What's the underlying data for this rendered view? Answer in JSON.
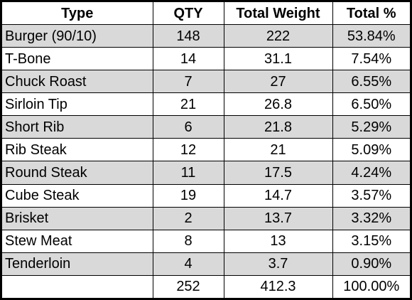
{
  "table": {
    "headers": [
      "Type",
      "QTY",
      "Total Weight",
      "Total %"
    ],
    "rows": [
      {
        "type": "Burger (90/10)",
        "qty": "148",
        "weight": "222",
        "pct": "53.84%"
      },
      {
        "type": "T-Bone",
        "qty": "14",
        "weight": "31.1",
        "pct": "7.54%"
      },
      {
        "type": "Chuck Roast",
        "qty": "7",
        "weight": "27",
        "pct": "6.55%"
      },
      {
        "type": "Sirloin Tip",
        "qty": "21",
        "weight": "26.8",
        "pct": "6.50%"
      },
      {
        "type": "Short Rib",
        "qty": "6",
        "weight": "21.8",
        "pct": "5.29%"
      },
      {
        "type": "Rib Steak",
        "qty": "12",
        "weight": "21",
        "pct": "5.09%"
      },
      {
        "type": "Round Steak",
        "qty": "11",
        "weight": "17.5",
        "pct": "4.24%"
      },
      {
        "type": "Cube Steak",
        "qty": "19",
        "weight": "14.7",
        "pct": "3.57%"
      },
      {
        "type": "Brisket",
        "qty": "2",
        "weight": "13.7",
        "pct": "3.32%"
      },
      {
        "type": "Stew Meat",
        "qty": "8",
        "weight": "13",
        "pct": "3.15%"
      },
      {
        "type": "Tenderloin",
        "qty": "4",
        "weight": "3.7",
        "pct": "0.90%"
      }
    ],
    "totals": {
      "type": "",
      "qty": "252",
      "weight": "412.3",
      "pct": "100.00%"
    }
  },
  "colors": {
    "row_shade": "#d9d9d9",
    "row_plain": "#ffffff",
    "border": "#000000"
  }
}
